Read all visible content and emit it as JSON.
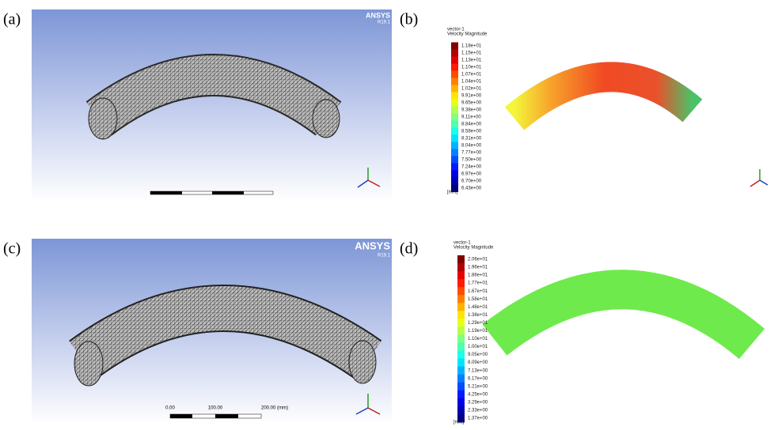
{
  "panels": [
    {
      "label": "(a)",
      "logo": "ANSYS",
      "version": "R19.1"
    },
    {
      "label": "(b)",
      "legend": {
        "title": "vector-1",
        "subtitle": "Velocity Magnitude",
        "unit": "[m/s]",
        "values": [
          "1.18e+01",
          "1.15e+01",
          "1.13e+01",
          "1.10e+01",
          "1.07e+01",
          "1.04e+01",
          "1.02e+01",
          "9.91e+00",
          "9.65e+00",
          "9.38e+00",
          "9.11e+00",
          "8.84e+00",
          "8.58e+00",
          "8.31e+00",
          "8.04e+00",
          "7.77e+00",
          "7.50e+00",
          "7.24e+00",
          "6.97e+00",
          "6.70e+00",
          "6.43e+00"
        ]
      }
    },
    {
      "label": "(c)",
      "logo": "ANSYS",
      "version": "R19.1",
      "scale": [
        "0.00",
        "100.00",
        "200.00 (mm)"
      ]
    },
    {
      "label": "(d)",
      "legend": {
        "title": "vector-1",
        "subtitle": "Velocity Magnitude",
        "unit": "[m/s]",
        "values": [
          "2.06e+01",
          "1.96e+01",
          "1.86e+01",
          "1.77e+01",
          "1.67e+01",
          "1.58e+01",
          "1.48e+01",
          "1.38e+01",
          "1.29e+01",
          "1.19e+01",
          "1.10e+01",
          "1.00e+01",
          "9.05e+00",
          "8.09e+00",
          "7.13e+00",
          "6.17e+00",
          "5.21e+00",
          "4.25e+00",
          "3.29e+00",
          "2.33e+00",
          "1.37e+00"
        ]
      }
    }
  ]
}
